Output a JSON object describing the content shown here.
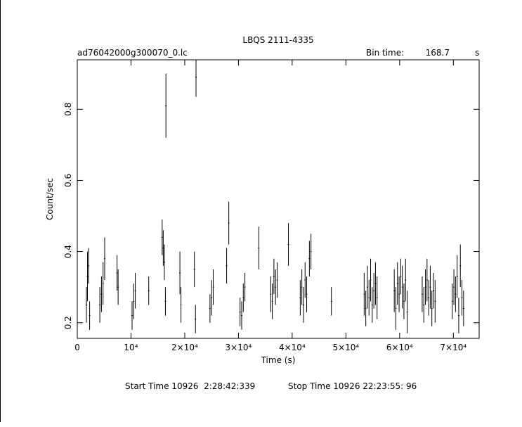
{
  "chart_data": {
    "type": "errorbar",
    "title": "LBQS 2111-4335",
    "subtitle": "ad76042000g300070_0.lc",
    "bin_label": "Bin time:",
    "bin_time": 168.7,
    "bin_unit": "s",
    "ylabel": "Count/sec",
    "xlabel": "Time (s)",
    "start_time": "Start Time 10926  2:28:42:339",
    "stop_time": "Stop Time 10926 22:23:55: 96",
    "color": "#000000",
    "xlim": [
      0,
      74800
    ],
    "ylim": [
      0.156,
      0.939
    ],
    "xticks": [
      0,
      {
        "value": 10000,
        "label": "10⁴"
      },
      {
        "value": 20000,
        "label": "2×10⁴"
      },
      {
        "value": 30000,
        "label": "3×10⁴"
      },
      {
        "value": 40000,
        "label": "4×10⁴"
      },
      {
        "value": 50000,
        "label": "5×10⁴"
      },
      {
        "value": 60000,
        "label": "6×10⁴"
      },
      {
        "value": 70000,
        "label": "7×10⁴"
      }
    ],
    "yticks": [
      0.2,
      0.4,
      0.6,
      0.8
    ],
    "x": [
      1700,
      1900,
      2100,
      2300,
      4200,
      4500,
      4800,
      5100,
      7400,
      7600,
      10200,
      10500,
      10800,
      13300,
      15800,
      16000,
      16200,
      16400,
      16500,
      19100,
      19300,
      21800,
      22000,
      22100,
      24700,
      25000,
      25300,
      27800,
      28200,
      30300,
      30600,
      30900,
      31200,
      33800,
      36000,
      36300,
      36600,
      36900,
      37200,
      39300,
      41500,
      41800,
      42100,
      42400,
      42700,
      43200,
      43500,
      47300,
      53400,
      53700,
      54000,
      54300,
      54600,
      54900,
      55200,
      55500,
      55800,
      59000,
      59300,
      59600,
      59900,
      60200,
      60500,
      60800,
      61100,
      61400,
      64200,
      64500,
      64800,
      65100,
      65400,
      65700,
      66000,
      66300,
      66600,
      69800,
      70100,
      70400,
      70700,
      71000,
      71300,
      71600,
      71900
    ],
    "values": [
      0.25,
      0.33,
      0.36,
      0.22,
      0.25,
      0.28,
      0.31,
      0.38,
      0.34,
      0.3,
      0.22,
      0.26,
      0.29,
      0.29,
      0.44,
      0.41,
      0.37,
      0.26,
      0.81,
      0.34,
      0.25,
      0.35,
      0.21,
      0.89,
      0.24,
      0.27,
      0.3,
      0.36,
      0.48,
      0.23,
      0.22,
      0.27,
      0.3,
      0.41,
      0.28,
      0.26,
      0.33,
      0.3,
      0.32,
      0.42,
      0.27,
      0.3,
      0.25,
      0.32,
      0.28,
      0.38,
      0.4,
      0.26,
      0.28,
      0.24,
      0.3,
      0.27,
      0.32,
      0.25,
      0.29,
      0.31,
      0.27,
      0.29,
      0.24,
      0.31,
      0.28,
      0.33,
      0.3,
      0.26,
      0.32,
      0.23,
      0.28,
      0.25,
      0.3,
      0.32,
      0.27,
      0.3,
      0.24,
      0.29,
      0.26,
      0.26,
      0.3,
      0.28,
      0.33,
      0.22,
      0.36,
      0.27,
      0.24
    ],
    "errors": [
      0.05,
      0.07,
      0.05,
      0.04,
      0.05,
      0.05,
      0.06,
      0.06,
      0.05,
      0.05,
      0.04,
      0.05,
      0.05,
      0.04,
      0.05,
      0.05,
      0.05,
      0.04,
      0.09,
      0.06,
      0.05,
      0.05,
      0.04,
      0.055,
      0.04,
      0.05,
      0.05,
      0.05,
      0.06,
      0.04,
      0.04,
      0.04,
      0.04,
      0.06,
      0.05,
      0.05,
      0.05,
      0.05,
      0.05,
      0.06,
      0.05,
      0.05,
      0.05,
      0.05,
      0.05,
      0.05,
      0.05,
      0.04,
      0.06,
      0.05,
      0.06,
      0.05,
      0.06,
      0.05,
      0.05,
      0.06,
      0.06,
      0.06,
      0.06,
      0.06,
      0.05,
      0.05,
      0.06,
      0.05,
      0.06,
      0.06,
      0.05,
      0.05,
      0.05,
      0.06,
      0.05,
      0.06,
      0.05,
      0.05,
      0.06,
      0.05,
      0.05,
      0.05,
      0.06,
      0.05,
      0.06,
      0.05,
      0.05
    ]
  }
}
